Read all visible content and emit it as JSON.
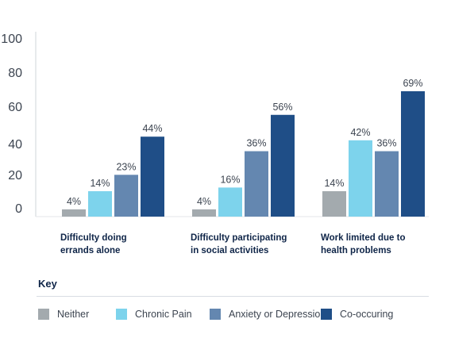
{
  "chart_data": {
    "type": "bar",
    "categories": [
      [
        "Difficulty doing",
        "errands alone"
      ],
      [
        "Difficulty participating",
        "in social activities"
      ],
      [
        "Work limited due to",
        "health problems"
      ]
    ],
    "series": [
      {
        "name": "Neither",
        "color": "#a3aaae",
        "values": [
          4,
          4,
          14
        ]
      },
      {
        "name": "Chronic Pain",
        "color": "#7dd3ec",
        "values": [
          14,
          16,
          42
        ]
      },
      {
        "name": "Anxiety or Depression",
        "color": "#6487b0",
        "values": [
          23,
          36,
          36
        ]
      },
      {
        "name": "Co-occuring",
        "color": "#1f4e87",
        "values": [
          44,
          56,
          69
        ]
      }
    ],
    "value_suffix": "%",
    "ylim": [
      0,
      100
    ],
    "yticks": [
      0,
      20,
      40,
      60,
      80,
      100
    ],
    "grid": false,
    "legend_placement": "bottom"
  },
  "key": {
    "title": "Key"
  }
}
